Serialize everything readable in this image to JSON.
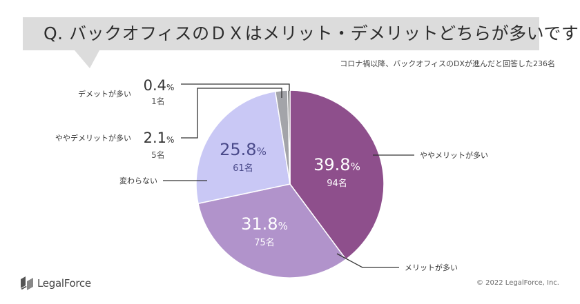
{
  "title": "Q. バックオフィスのＤＸはメリット・デメリットどちらが多いですか",
  "subtitle": "コロナ禍以降、バックオフィスのDXが進んだと回答した236名",
  "brand": "LegalForce",
  "copyright": "© 2022 LegalForce, Inc.",
  "percent_suffix": "%",
  "chart_data": {
    "type": "pie",
    "total": 236,
    "count_unit": "名",
    "slices": [
      {
        "label": "ややメリットが多い",
        "percent": "39.8",
        "count": "94",
        "color": "#8e4f8c"
      },
      {
        "label": "メリットが多い",
        "percent": "31.8",
        "count": "75",
        "color": "#b193cb"
      },
      {
        "label": "変わらない",
        "percent": "25.8",
        "count": "61",
        "color": "#c9c8f5"
      },
      {
        "label": "ややデメリットが多い",
        "percent": "2.1",
        "count": "5",
        "color": "#a3a4a9"
      },
      {
        "label": "デメットが多い",
        "percent": "0.4",
        "count": "1",
        "color": "#5d5d5d"
      }
    ]
  }
}
